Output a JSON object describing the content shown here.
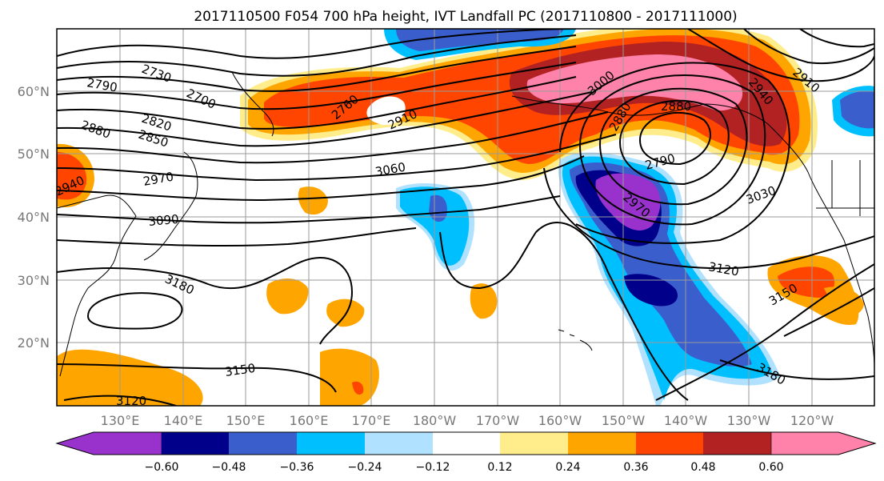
{
  "title": "2017110500 F054 700 hPa height, IVT Landfall PC (2017110800 - 2017111000)",
  "lat_labels": [
    {
      "lat": 60,
      "text": "60°N"
    },
    {
      "lat": 50,
      "text": "50°N"
    },
    {
      "lat": 40,
      "text": "40°N"
    },
    {
      "lat": 30,
      "text": "30°N"
    },
    {
      "lat": 20,
      "text": "20°N"
    }
  ],
  "lon_labels": [
    {
      "lon": 130,
      "text": "130°E"
    },
    {
      "lon": 140,
      "text": "140°E"
    },
    {
      "lon": 150,
      "text": "150°E"
    },
    {
      "lon": 160,
      "text": "160°E"
    },
    {
      "lon": 170,
      "text": "170°E"
    },
    {
      "lon": 180,
      "text": "180°W"
    },
    {
      "lon": 190,
      "text": "170°W"
    },
    {
      "lon": 200,
      "text": "160°W"
    },
    {
      "lon": 210,
      "text": "150°W"
    },
    {
      "lon": 220,
      "text": "140°W"
    },
    {
      "lon": 230,
      "text": "130°W"
    },
    {
      "lon": 240,
      "text": "120°W"
    }
  ],
  "colorbar": {
    "colors": [
      "#9932CC",
      "#00008B",
      "#3A5FCD",
      "#00BFFF",
      "#B0E2FF",
      "#FFFFFF",
      "#FFEC8B",
      "#FFA500",
      "#FF4500",
      "#B22222",
      "#FF82AB"
    ],
    "ticks": [
      "−0.60",
      "−0.48",
      "−0.36",
      "−0.24",
      "−0.12",
      "0.12",
      "0.24",
      "0.36",
      "0.48",
      "0.60"
    ]
  },
  "contour_labels": [
    "2730",
    "2790",
    "2700",
    "2880",
    "2820",
    "2850",
    "2760",
    "2910",
    "2940",
    "2970",
    "3060",
    "3090",
    "3000",
    "2880",
    "2940",
    "2910",
    "2880",
    "2790",
    "2970",
    "3030",
    "3120",
    "3150",
    "3180",
    "3150",
    "3180",
    "3120"
  ]
}
